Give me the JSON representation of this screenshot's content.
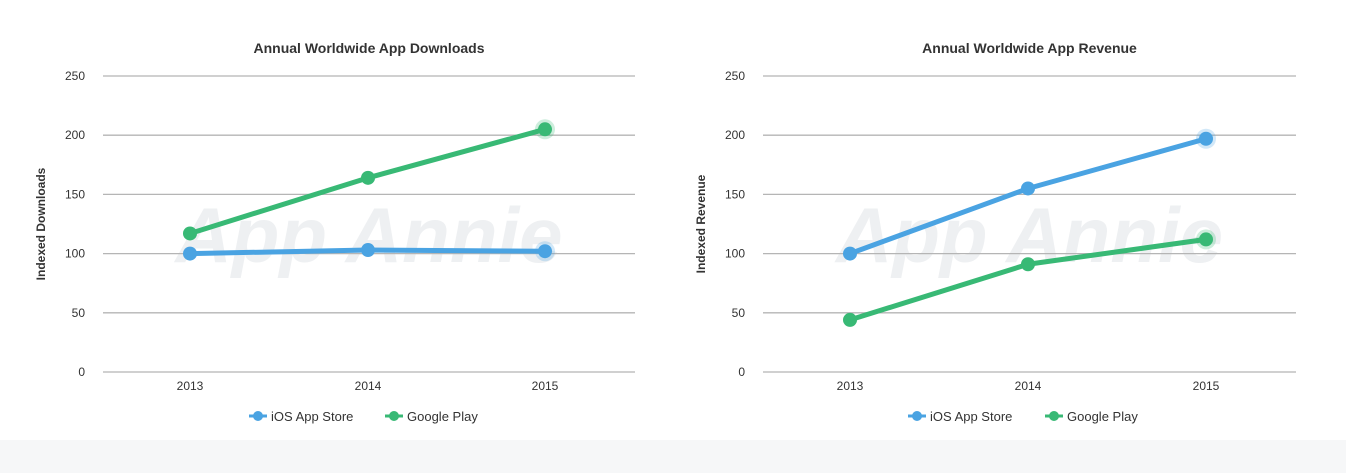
{
  "watermark": "App Annie",
  "colors": {
    "ios": "#4aa3e2",
    "google": "#38b975",
    "grid": "#b5b5b5"
  },
  "chart_data": [
    {
      "type": "line",
      "title": "Annual Worldwide App Downloads",
      "ylabel": "Indexed Downloads",
      "xlabel": "",
      "categories": [
        "2013",
        "2014",
        "2015"
      ],
      "ylim": [
        0,
        250
      ],
      "yticks": [
        "0",
        "50",
        "100",
        "150",
        "200",
        "250"
      ],
      "grid": true,
      "legend": "bottom",
      "series": [
        {
          "name": "iOS App Store",
          "values": [
            100,
            103,
            102
          ]
        },
        {
          "name": "Google Play",
          "values": [
            117,
            164,
            205
          ]
        }
      ]
    },
    {
      "type": "line",
      "title": "Annual Worldwide App Revenue",
      "ylabel": "Indexed Revenue",
      "xlabel": "",
      "categories": [
        "2013",
        "2014",
        "2015"
      ],
      "ylim": [
        0,
        250
      ],
      "yticks": [
        "0",
        "50",
        "100",
        "150",
        "200",
        "250"
      ],
      "grid": true,
      "legend": "bottom",
      "series": [
        {
          "name": "iOS App Store",
          "values": [
            100,
            155,
            197
          ]
        },
        {
          "name": "Google Play",
          "values": [
            44,
            91,
            112
          ]
        }
      ]
    }
  ]
}
